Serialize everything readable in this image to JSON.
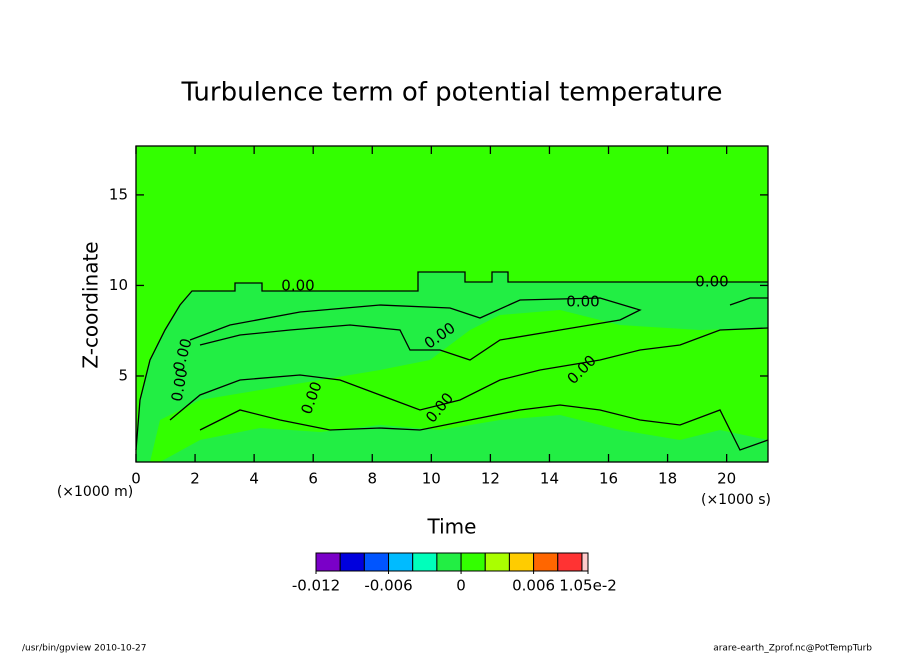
{
  "chart_data": {
    "type": "contour",
    "title": "Turbulence term of potential temperature",
    "x_label": "Time",
    "y_label": "Z-coordinate",
    "x_unit": "(×1000 s)",
    "y_unit": "(×1000 m)",
    "xlim": [
      0,
      21.4
    ],
    "xticks": [
      0,
      2,
      4,
      6,
      8,
      10,
      12,
      14,
      16,
      18,
      20
    ],
    "ylim": [
      0.25,
      17.7
    ],
    "yticks": [
      5,
      10,
      15
    ],
    "contour_labels": [
      "0.00",
      "0.00",
      "0.00",
      "0.00",
      "0.00",
      "0.00",
      "0.00",
      "0.00",
      "0.00"
    ],
    "colorbar": {
      "levels": [
        -0.012,
        -0.01,
        -0.008,
        -0.006,
        -0.004,
        -0.002,
        0,
        0.002,
        0.004,
        0.006,
        0.008,
        0.01,
        0.0105
      ],
      "colors": [
        "#7a00c8",
        "#0000dd",
        "#0055ff",
        "#00bbff",
        "#00ffbb",
        "#22ee44",
        "#33ff00",
        "#aaff00",
        "#ffcc00",
        "#ff6600",
        "#ff3333",
        "#ffcccc"
      ],
      "ticks": [
        -0.012,
        -0.006,
        0,
        0.006,
        {
          "value": 0.0105,
          "label": "1.05e-2"
        }
      ]
    },
    "footer_left": "/usr/bin/gpview  2010-10-27",
    "footer_right": "arare-earth_Zprof.nc@PotTempTurb"
  }
}
